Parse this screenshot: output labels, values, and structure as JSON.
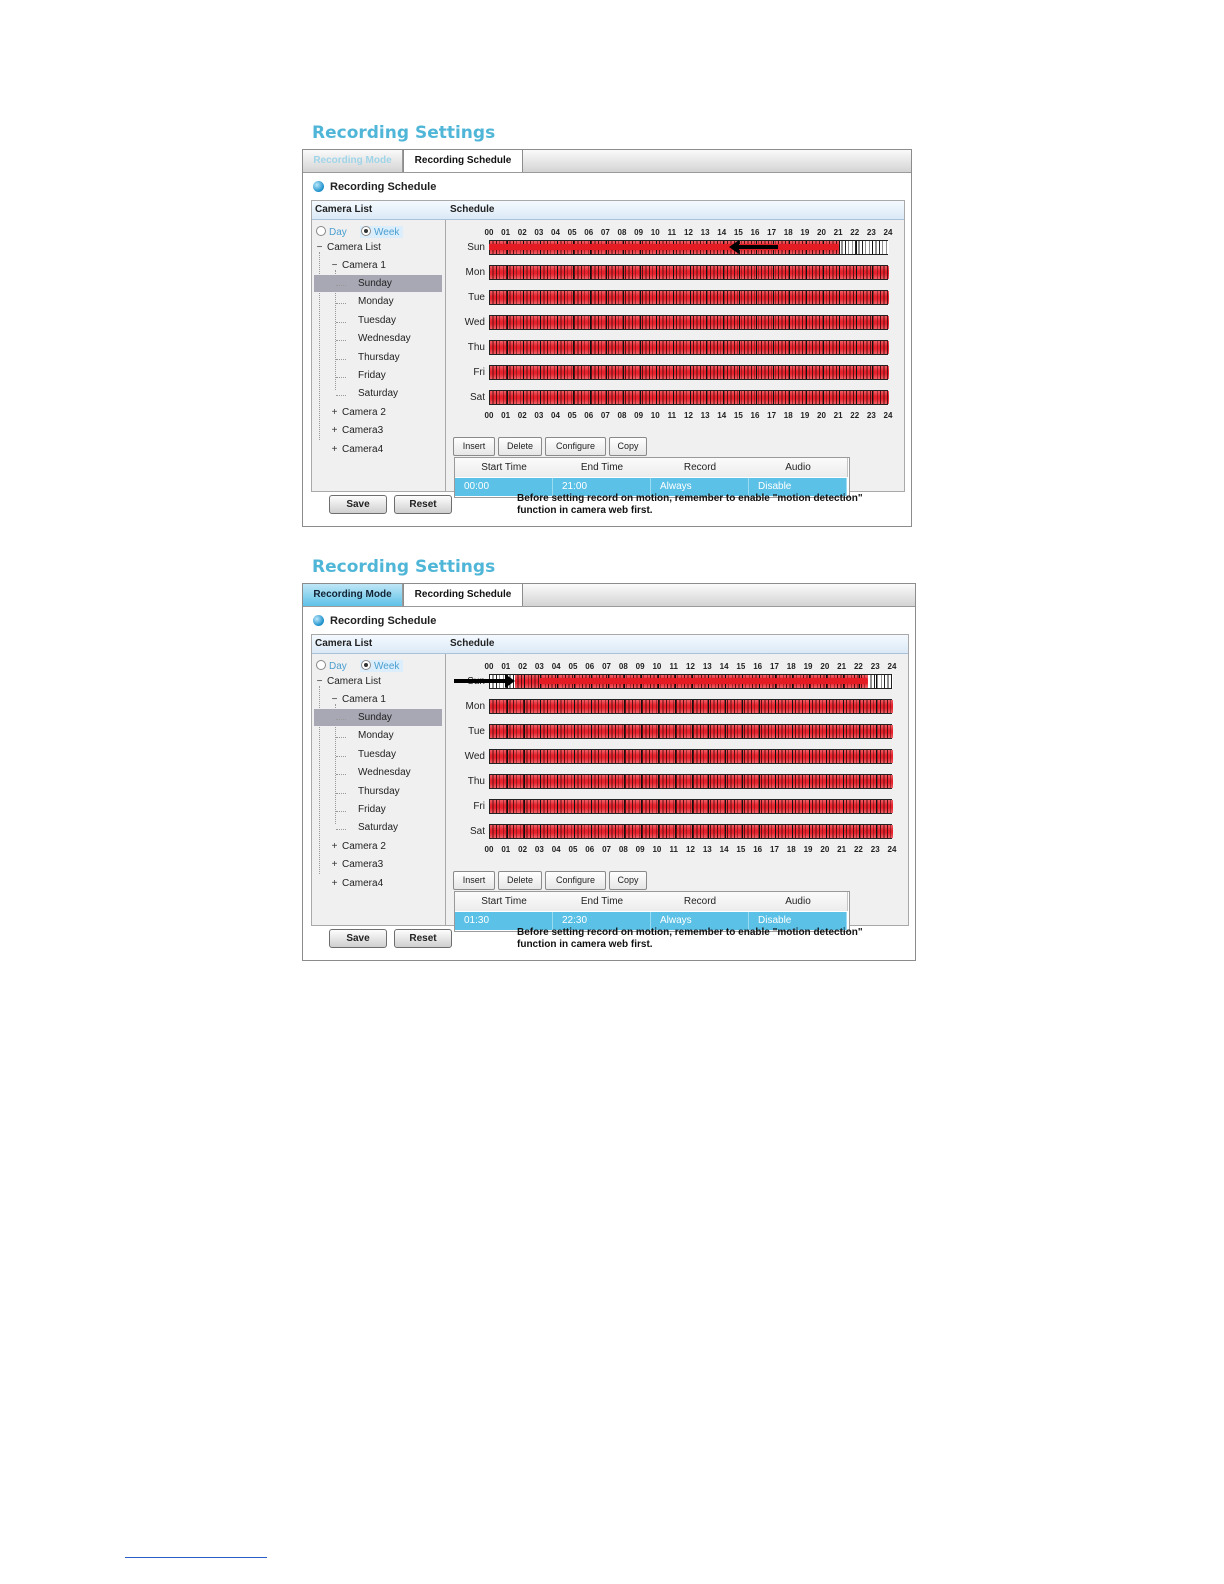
{
  "screens": [
    {
      "title": "Recording Settings",
      "tabs": [
        "Recording Mode",
        "Recording Schedule"
      ],
      "section_heading": "Recording Schedule",
      "camera_list_header": "Camera List",
      "schedule_header": "Schedule",
      "view_options": {
        "day": "Day",
        "week": "Week",
        "selected": "Week"
      },
      "tree": {
        "root": "Camera List",
        "camera1": "Camera 1",
        "days": [
          "Sunday",
          "Monday",
          "Tuesday",
          "Wednesday",
          "Thursday",
          "Friday",
          "Saturday"
        ],
        "selected_day": "Sunday",
        "others": [
          "Camera 2",
          "Camera3",
          "Camera4"
        ]
      },
      "hours": [
        "00",
        "01",
        "02",
        "03",
        "04",
        "05",
        "06",
        "07",
        "08",
        "09",
        "10",
        "11",
        "12",
        "13",
        "14",
        "15",
        "16",
        "17",
        "18",
        "19",
        "20",
        "21",
        "22",
        "23",
        "24"
      ],
      "day_labels": [
        "Sun",
        "Mon",
        "Tue",
        "Wed",
        "Thu",
        "Fri",
        "Sat"
      ],
      "sunday_recording": {
        "start_hour": 0,
        "end_hour": 21
      },
      "buttons": [
        "Insert",
        "Delete",
        "Configure",
        "Copy"
      ],
      "table": {
        "columns": [
          "Start Time",
          "End Time",
          "Record",
          "Audio"
        ],
        "row": [
          "00:00",
          "21:00",
          "Always",
          "Disable"
        ]
      },
      "save_label": "Save",
      "reset_label": "Reset",
      "note": "Before setting record on motion, remember to enable \"motion detection\"\nfunction in camera web first."
    },
    {
      "title": "Recording Settings",
      "tabs": [
        "Recording Mode",
        "Recording Schedule"
      ],
      "section_heading": "Recording Schedule",
      "camera_list_header": "Camera List",
      "schedule_header": "Schedule",
      "view_options": {
        "day": "Day",
        "week": "Week",
        "selected": "Week"
      },
      "tree": {
        "root": "Camera List",
        "camera1": "Camera 1",
        "days": [
          "Sunday",
          "Monday",
          "Tuesday",
          "Wednesday",
          "Thursday",
          "Friday",
          "Saturday"
        ],
        "selected_day": "Sunday",
        "others": [
          "Camera 2",
          "Camera3",
          "Camera4"
        ]
      },
      "hours": [
        "00",
        "01",
        "02",
        "03",
        "04",
        "05",
        "06",
        "07",
        "08",
        "09",
        "10",
        "11",
        "12",
        "13",
        "14",
        "15",
        "16",
        "17",
        "18",
        "19",
        "20",
        "21",
        "22",
        "23",
        "24"
      ],
      "day_labels": [
        "Sun",
        "Mon",
        "Tue",
        "Wed",
        "Thu",
        "Fri",
        "Sat"
      ],
      "sunday_recording": {
        "start_hour": 1.5,
        "end_hour": 22.5
      },
      "buttons": [
        "Insert",
        "Delete",
        "Configure",
        "Copy"
      ],
      "table": {
        "columns": [
          "Start Time",
          "End Time",
          "Record",
          "Audio"
        ],
        "row": [
          "01:30",
          "22:30",
          "Always",
          "Disable"
        ]
      },
      "save_label": "Save",
      "reset_label": "Reset",
      "note": "Before setting record on motion, remember to enable \"motion detection\"\nfunction in camera web first."
    }
  ],
  "colors": {
    "title": "#4fb6d8",
    "recorded": "#e8222c",
    "selected_row": "#5cc1e6",
    "tree_selection": "#a8a8b4"
  }
}
